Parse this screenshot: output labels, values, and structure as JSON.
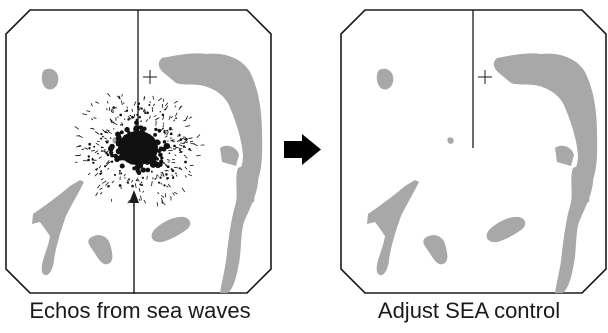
{
  "diagram": {
    "panels": [
      {
        "id": "before",
        "state": "sea clutter present",
        "caption": "Echos from sea waves",
        "show_clutter": true,
        "show_pointer_arrow": true
      },
      {
        "id": "after",
        "state": "sea clutter suppressed",
        "caption": "Adjust SEA control",
        "show_clutter": false,
        "show_pointer_arrow": false
      }
    ],
    "transition_icon": "right-arrow-icon",
    "colors": {
      "landmass": "#a8a8a8",
      "screen_border": "#1a1a1a",
      "screen_fill": "#ffffff",
      "clutter": "#111111",
      "heading_line": "#1a1a1a",
      "arrow": "#000000"
    }
  }
}
